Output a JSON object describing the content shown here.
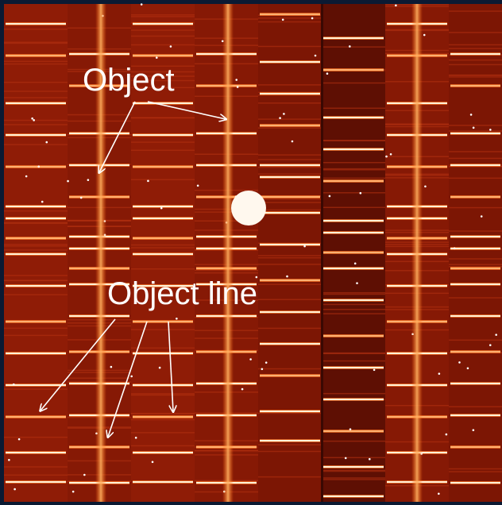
{
  "annotations": [
    {
      "label": "Object"
    },
    {
      "label": "Object line"
    }
  ]
}
